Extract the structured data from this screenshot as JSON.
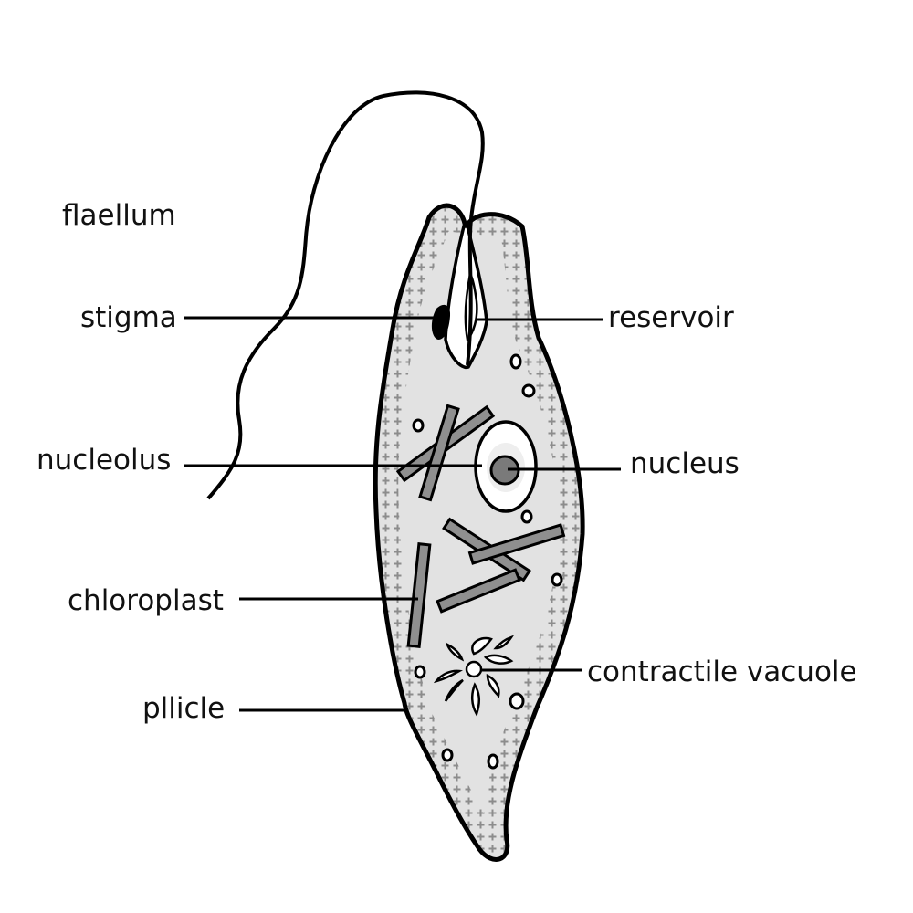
{
  "labels": {
    "flagellum": "flaellum",
    "stigma": "stigma",
    "reservoir": "reservoir",
    "nucleolus": "nucleolus",
    "nucleus": "nucleus",
    "chloroplast": "chloroplast",
    "contractile_vacuole": "contractile vacuole",
    "pellicle": "pllicle"
  },
  "colors": {
    "outline": "#000000",
    "cytoplasm": "#e2e2e2",
    "pellicle_dots": "#8c8c8c",
    "chloroplast": "#8f8f8f",
    "nucleolus": "#7a7a7a",
    "nucleus": "#ffffff"
  }
}
